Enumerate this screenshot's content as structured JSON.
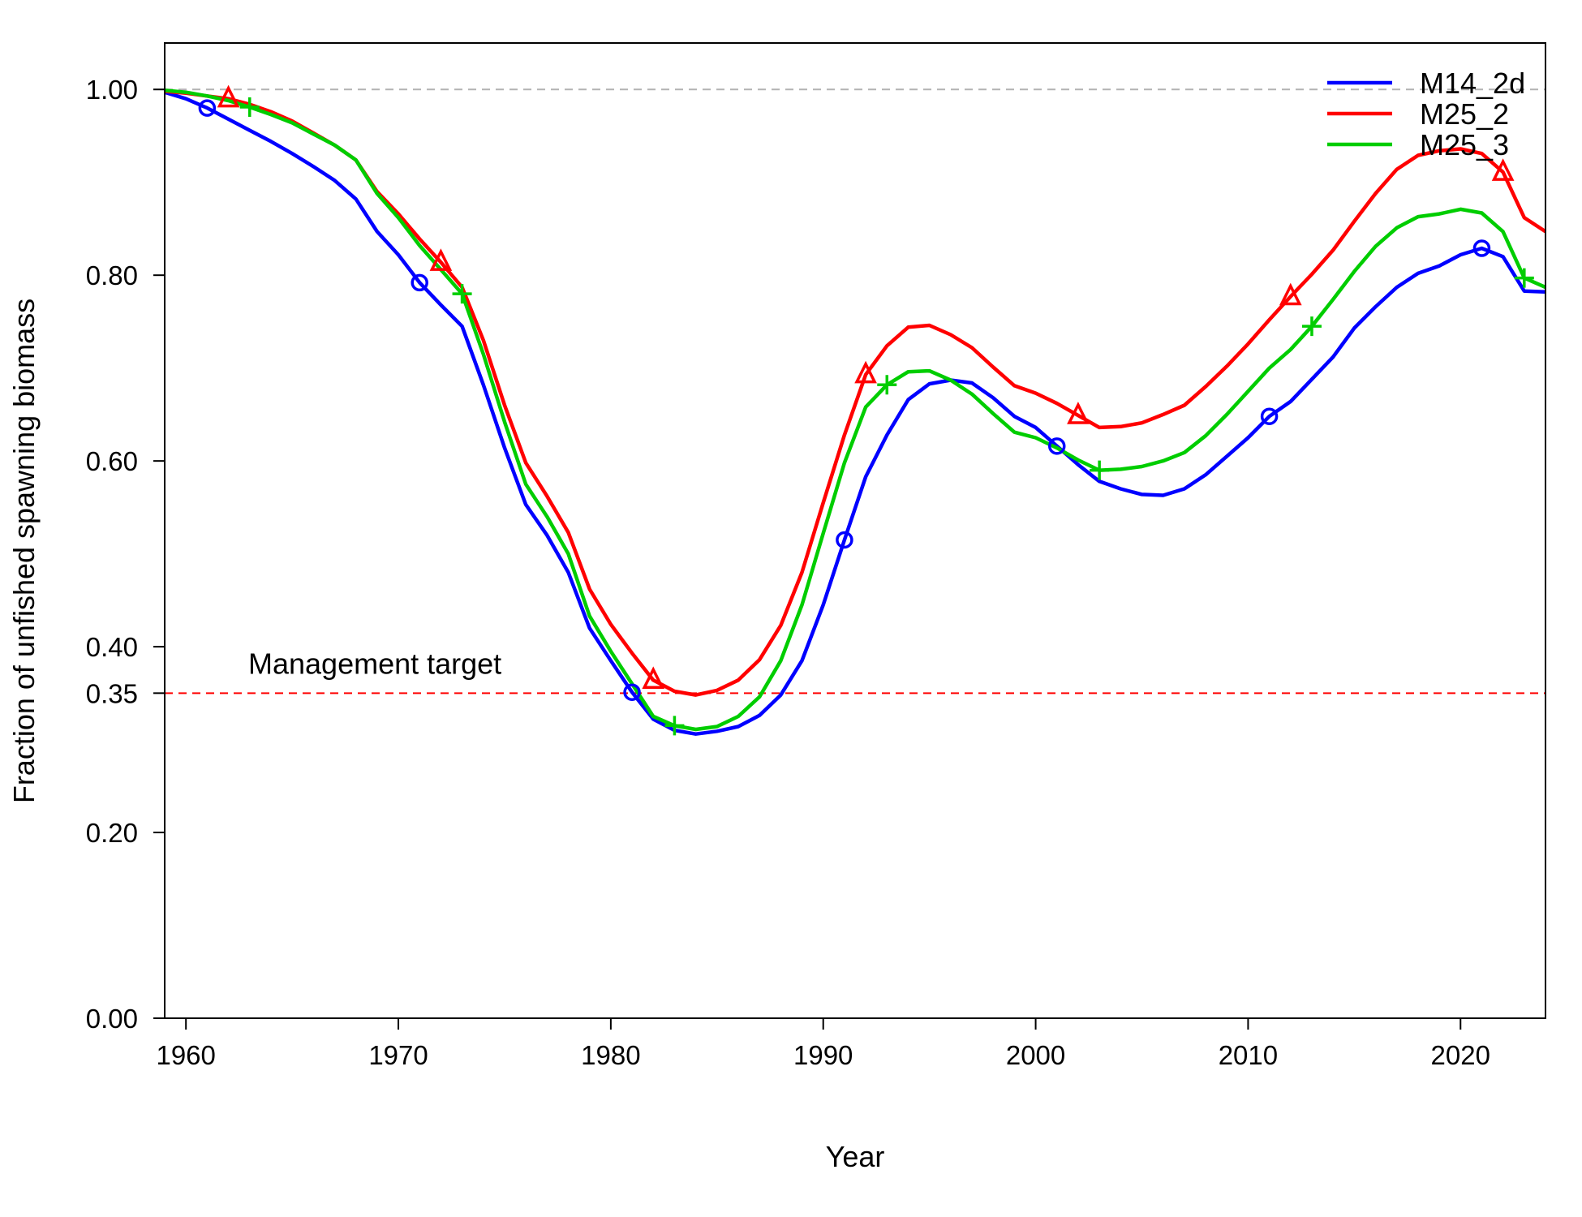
{
  "chart_data": {
    "type": "line",
    "title": "",
    "xlabel": "Year",
    "ylabel": "Fraction of unfished spawning biomass",
    "xlim": [
      1959,
      2024
    ],
    "ylim": [
      0,
      1.05
    ],
    "x_ticks": [
      1960,
      1970,
      1980,
      1990,
      2000,
      2010,
      2020
    ],
    "y_ticks": [
      0.0,
      0.2,
      0.35,
      0.4,
      0.6,
      0.8,
      1.0
    ],
    "y_tick_labels": [
      "0.00",
      "0.20",
      "0.35",
      "0.40",
      "0.60",
      "0.80",
      "1.00"
    ],
    "x_tick_labels": [
      "1960",
      "1970",
      "1980",
      "1990",
      "2000",
      "2010",
      "2020"
    ],
    "legend_position": "top-right",
    "reference_lines": [
      {
        "y": 1.0,
        "color": "#b3b3b3",
        "style": "dashed"
      },
      {
        "y": 0.35,
        "color": "#ff0000",
        "style": "dashed",
        "label": "Management target"
      }
    ],
    "x": [
      1959,
      1960,
      1961,
      1962,
      1963,
      1964,
      1965,
      1966,
      1967,
      1968,
      1969,
      1970,
      1971,
      1972,
      1973,
      1974,
      1975,
      1976,
      1977,
      1978,
      1979,
      1980,
      1981,
      1982,
      1983,
      1984,
      1985,
      1986,
      1987,
      1988,
      1989,
      1990,
      1991,
      1992,
      1993,
      1994,
      1995,
      1996,
      1997,
      1998,
      1999,
      2000,
      2001,
      2002,
      2003,
      2004,
      2005,
      2006,
      2007,
      2008,
      2009,
      2010,
      2011,
      2012,
      2013,
      2014,
      2015,
      2016,
      2017,
      2018,
      2019,
      2020,
      2021,
      2022,
      2023,
      2024
    ],
    "series": [
      {
        "name": "M14_2d",
        "color": "#0000ff",
        "marker": "circle",
        "marker_x": [
          1961,
          1971,
          1981,
          1991,
          2001,
          2011,
          2021
        ],
        "values": [
          0.997,
          0.99,
          0.98,
          0.968,
          0.956,
          0.944,
          0.931,
          0.917,
          0.902,
          0.882,
          0.847,
          0.822,
          0.792,
          0.768,
          0.745,
          0.682,
          0.614,
          0.553,
          0.52,
          0.48,
          0.42,
          0.385,
          0.351,
          0.322,
          0.31,
          0.306,
          0.309,
          0.314,
          0.326,
          0.348,
          0.385,
          0.445,
          0.515,
          0.583,
          0.628,
          0.666,
          0.683,
          0.687,
          0.684,
          0.668,
          0.648,
          0.636,
          0.616,
          0.596,
          0.578,
          0.57,
          0.564,
          0.563,
          0.57,
          0.585,
          0.605,
          0.625,
          0.648,
          0.664,
          0.688,
          0.712,
          0.743,
          0.766,
          0.787,
          0.802,
          0.81,
          0.822,
          0.829,
          0.82,
          0.783,
          0.782
        ]
      },
      {
        "name": "M25_2",
        "color": "#ff0000",
        "marker": "triangle",
        "marker_x": [
          1962,
          1972,
          1982,
          1992,
          2002,
          2012,
          2022
        ],
        "values": [
          0.998,
          0.996,
          0.993,
          0.99,
          0.984,
          0.976,
          0.966,
          0.953,
          0.94,
          0.924,
          0.89,
          0.866,
          0.839,
          0.814,
          0.787,
          0.73,
          0.66,
          0.598,
          0.562,
          0.523,
          0.462,
          0.424,
          0.393,
          0.364,
          0.352,
          0.348,
          0.353,
          0.364,
          0.386,
          0.423,
          0.48,
          0.555,
          0.628,
          0.693,
          0.724,
          0.744,
          0.746,
          0.736,
          0.722,
          0.701,
          0.681,
          0.673,
          0.662,
          0.649,
          0.636,
          0.637,
          0.641,
          0.65,
          0.66,
          0.68,
          0.702,
          0.726,
          0.752,
          0.777,
          0.801,
          0.827,
          0.858,
          0.888,
          0.914,
          0.929,
          0.934,
          0.936,
          0.931,
          0.911,
          0.862,
          0.847
        ]
      },
      {
        "name": "M25_3",
        "color": "#00cd00",
        "marker": "plus",
        "marker_x": [
          1963,
          1973,
          1983,
          1993,
          2003,
          2013,
          2023
        ],
        "values": [
          0.999,
          0.997,
          0.993,
          0.988,
          0.981,
          0.973,
          0.964,
          0.952,
          0.94,
          0.924,
          0.888,
          0.862,
          0.832,
          0.806,
          0.78,
          0.715,
          0.642,
          0.575,
          0.54,
          0.5,
          0.433,
          0.395,
          0.36,
          0.325,
          0.315,
          0.311,
          0.314,
          0.325,
          0.346,
          0.385,
          0.445,
          0.522,
          0.598,
          0.658,
          0.682,
          0.696,
          0.697,
          0.687,
          0.672,
          0.651,
          0.631,
          0.625,
          0.614,
          0.601,
          0.59,
          0.591,
          0.594,
          0.6,
          0.609,
          0.627,
          0.65,
          0.675,
          0.7,
          0.72,
          0.745,
          0.774,
          0.804,
          0.831,
          0.851,
          0.863,
          0.866,
          0.871,
          0.867,
          0.847,
          0.797,
          0.787
        ]
      }
    ]
  }
}
